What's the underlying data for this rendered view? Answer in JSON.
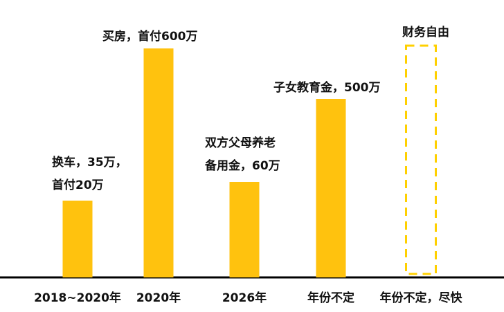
{
  "chart_data": {
    "type": "bar",
    "categories": [
      "2018~2020年",
      "2020年",
      "2026年",
      "年份不定",
      "年份不定，尽快"
    ],
    "values": [
      35,
      600,
      60,
      500,
      null
    ],
    "units": "万",
    "bar_color": "#FFC20E",
    "dashed_bar_color": "#FFD000",
    "axis_color": "#000000",
    "bar_labels": [
      [
        "换车，35万，",
        "首付20万"
      ],
      [
        "买房，首付600万"
      ],
      [
        "双方父母养老",
        "备用金，60万"
      ],
      [
        "子女教育金，500万"
      ],
      [
        "财务自由"
      ]
    ],
    "dashed_goal_index": 4,
    "title": "",
    "xlabel": "",
    "ylabel": "",
    "grid": false,
    "legend": "none"
  }
}
